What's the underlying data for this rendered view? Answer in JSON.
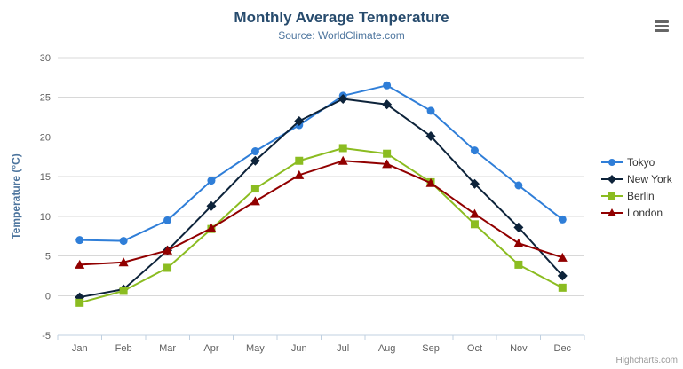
{
  "chart": {
    "credit": "Highcharts.com",
    "menu_icon": "hamburger-icon"
  },
  "chart_data": {
    "type": "line",
    "title": "Monthly Average Temperature",
    "subtitle": "Source: WorldClimate.com",
    "categories": [
      "Jan",
      "Feb",
      "Mar",
      "Apr",
      "May",
      "Jun",
      "Jul",
      "Aug",
      "Sep",
      "Oct",
      "Nov",
      "Dec"
    ],
    "series": [
      {
        "name": "Tokyo",
        "color": "#2f7ed8",
        "marker": "circle",
        "values": [
          7.0,
          6.9,
          9.5,
          14.5,
          18.2,
          21.5,
          25.2,
          26.5,
          23.3,
          18.3,
          13.9,
          9.6
        ]
      },
      {
        "name": "New York",
        "color": "#0d233a",
        "marker": "diamond",
        "values": [
          -0.2,
          0.8,
          5.7,
          11.3,
          17.0,
          22.0,
          24.8,
          24.1,
          20.1,
          14.1,
          8.6,
          2.5
        ]
      },
      {
        "name": "Berlin",
        "color": "#8bbc21",
        "marker": "square",
        "values": [
          -0.9,
          0.6,
          3.5,
          8.4,
          13.5,
          17.0,
          18.6,
          17.9,
          14.3,
          9.0,
          3.9,
          1.0
        ]
      },
      {
        "name": "London",
        "color": "#910000",
        "marker": "triangle",
        "values": [
          3.9,
          4.2,
          5.7,
          8.5,
          11.9,
          15.2,
          17.0,
          16.6,
          14.2,
          10.3,
          6.6,
          4.8
        ]
      }
    ],
    "xlabel": "",
    "ylabel": "Temperature (°C)",
    "ylim": [
      -5,
      30
    ],
    "ytick_step": 5,
    "grid": true,
    "legend_position": "right",
    "axis_label_color": "#606060",
    "axis_title_color": "#4d759e",
    "grid_color": "#d8d8d8",
    "axis_line_color": "#c0d0e0"
  }
}
